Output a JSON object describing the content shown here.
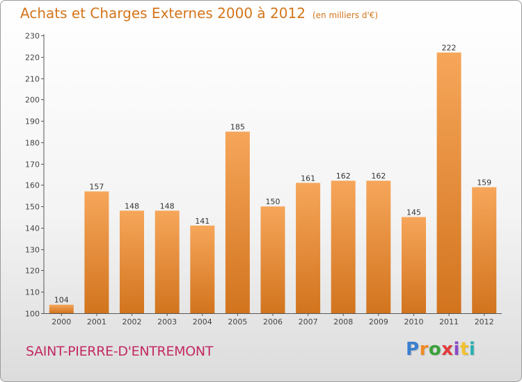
{
  "title": "Achats et Charges Externes 2000 à 2012",
  "unit": "(en milliers d'€)",
  "commune": "SAINT-PIERRE-D'ENTREMONT",
  "logo": "Proxiti",
  "colors": {
    "title": "#d4751a",
    "commune": "#c22a63",
    "bar_top": "#f6a65a",
    "bar_bottom": "#d2741e",
    "logo": [
      "#3a7fd0",
      "#f08a24",
      "#3aa13a",
      "#e23b3b",
      "#8a49c9",
      "#f2c12e",
      "#2ab0b0"
    ]
  },
  "chart_data": {
    "type": "bar",
    "title": "Achats et Charges Externes 2000 à 2012",
    "categories": [
      "2000",
      "2001",
      "2002",
      "2003",
      "2004",
      "2005",
      "2006",
      "2007",
      "2008",
      "2009",
      "2010",
      "2011",
      "2012"
    ],
    "values": [
      104,
      157,
      148,
      148,
      141,
      185,
      150,
      161,
      162,
      162,
      145,
      222,
      159
    ],
    "ylim": [
      100,
      230
    ],
    "yticks": [
      100,
      110,
      120,
      130,
      140,
      150,
      160,
      170,
      180,
      190,
      200,
      210,
      220,
      230
    ],
    "grid": false,
    "data_labels": true
  }
}
